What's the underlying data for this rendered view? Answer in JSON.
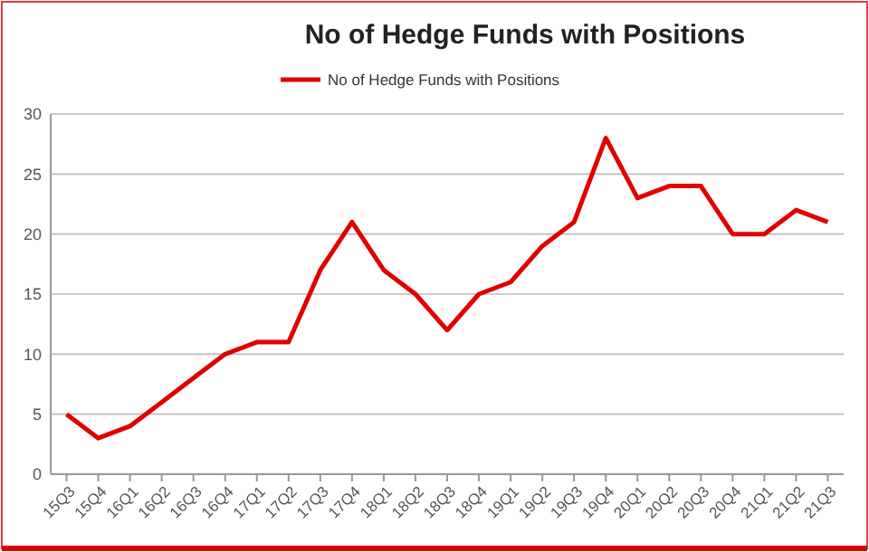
{
  "chart_data": {
    "type": "line",
    "title": "No of Hedge Funds with Positions",
    "categories": [
      "15Q3",
      "15Q4",
      "16Q1",
      "16Q2",
      "16Q3",
      "16Q4",
      "17Q1",
      "17Q2",
      "17Q3",
      "17Q4",
      "18Q1",
      "18Q2",
      "18Q3",
      "18Q4",
      "19Q1",
      "19Q2",
      "19Q3",
      "19Q4",
      "20Q1",
      "20Q2",
      "20Q3",
      "20Q4",
      "21Q1",
      "21Q2",
      "21Q3"
    ],
    "series": [
      {
        "name": "No of Hedge Funds with Positions",
        "color": "#e00000",
        "values": [
          5,
          3,
          4,
          6,
          8,
          10,
          11,
          11,
          17,
          21,
          17,
          15,
          12,
          15,
          16,
          19,
          21,
          28,
          23,
          24,
          24,
          20,
          20,
          22,
          21
        ]
      }
    ],
    "ylim": [
      0,
      30
    ],
    "yticks": [
      0,
      5,
      10,
      15,
      20,
      25,
      30
    ],
    "grid": "y",
    "legend": "top",
    "marker": "none",
    "line_style": "solid"
  }
}
